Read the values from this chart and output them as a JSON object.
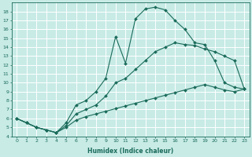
{
  "xlabel": "Humidex (Indice chaleur)",
  "background_color": "#c8ebe6",
  "grid_color": "#ffffff",
  "line_color": "#1a6b5a",
  "xlim": [
    -0.5,
    23.5
  ],
  "ylim": [
    4,
    19
  ],
  "yticks": [
    4,
    5,
    6,
    7,
    8,
    9,
    10,
    11,
    12,
    13,
    14,
    15,
    16,
    17,
    18
  ],
  "xticks": [
    0,
    1,
    2,
    3,
    4,
    5,
    6,
    7,
    8,
    9,
    10,
    11,
    12,
    13,
    14,
    15,
    16,
    17,
    18,
    19,
    20,
    21,
    22,
    23
  ],
  "curve1_x": [
    0,
    1,
    2,
    3,
    4,
    5,
    6,
    7,
    8,
    9,
    10,
    11,
    12,
    13,
    14,
    15,
    16,
    17,
    18,
    19,
    20,
    21,
    22,
    23
  ],
  "curve1_y": [
    6.0,
    5.5,
    5.0,
    4.7,
    4.4,
    5.5,
    7.5,
    8.0,
    9.0,
    10.5,
    15.2,
    12.2,
    17.2,
    18.3,
    18.5,
    18.2,
    17.0,
    16.0,
    14.5,
    14.3,
    12.5,
    10.0,
    9.5,
    9.3
  ],
  "curve2_x": [
    0,
    1,
    2,
    3,
    4,
    5,
    6,
    7,
    8,
    9,
    10,
    11,
    12,
    13,
    14,
    15,
    16,
    17,
    18,
    19,
    20,
    21,
    22,
    23
  ],
  "curve2_y": [
    6.0,
    5.5,
    5.0,
    4.7,
    4.4,
    5.2,
    6.5,
    7.0,
    7.5,
    8.5,
    10.0,
    10.5,
    11.5,
    12.5,
    13.5,
    14.0,
    14.5,
    14.3,
    14.2,
    13.8,
    13.5,
    13.0,
    12.5,
    9.3
  ],
  "curve3_x": [
    0,
    1,
    2,
    3,
    4,
    5,
    6,
    7,
    8,
    9,
    10,
    11,
    12,
    13,
    14,
    15,
    16,
    17,
    18,
    19,
    20,
    21,
    22,
    23
  ],
  "curve3_y": [
    6.0,
    5.5,
    5.0,
    4.7,
    4.4,
    5.0,
    5.8,
    6.2,
    6.5,
    6.8,
    7.1,
    7.4,
    7.7,
    8.0,
    8.3,
    8.6,
    8.9,
    9.2,
    9.5,
    9.8,
    9.5,
    9.2,
    9.0,
    9.3
  ]
}
